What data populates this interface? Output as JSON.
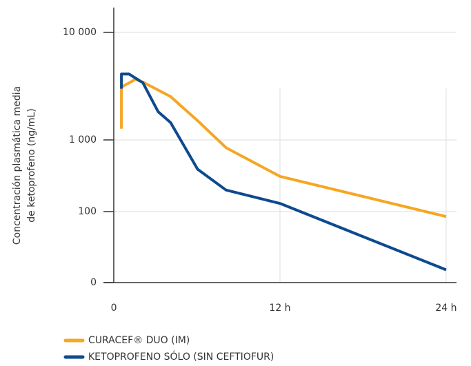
{
  "chart_data": {
    "type": "line",
    "y_label": [
      "Concentración plasmática media",
      "de ketoprofeno (ng/mL)"
    ],
    "xlim": [
      -0.75,
      24.75
    ],
    "xticks": [
      {
        "value": 0,
        "label": "0"
      },
      {
        "value": 12,
        "label": "12 h"
      },
      {
        "value": 24,
        "label": "24 h"
      }
    ],
    "ylim": [
      0,
      17000
    ],
    "yticks": [
      0,
      100,
      {
        "value": 1000,
        "label": "1 000"
      },
      {
        "value": 10000,
        "label": "10 000"
      }
    ],
    "grid": true,
    "series": [
      {
        "name": "CURACEF® DUO (IM)",
        "color": "#f5a623",
        "x": [
          0.55,
          0.55,
          1.55,
          2.1,
          4.1,
          6.05,
          8.1,
          12,
          24
        ],
        "values": [
          1270,
          3100,
          3650,
          3450,
          2530,
          1510,
          780,
          310,
          93
        ]
      },
      {
        "name": "KETOPROFENO SÓLO (SIN CEFTIOFUR)",
        "color": "#0d4a8f",
        "x": [
          0.55,
          0.55,
          1.1,
          2.1,
          3.2,
          4.1,
          6.05,
          8.1,
          12,
          24
        ],
        "values": [
          3000,
          4100,
          4100,
          3400,
          1830,
          1450,
          390,
          200,
          130,
          18
        ]
      }
    ]
  }
}
